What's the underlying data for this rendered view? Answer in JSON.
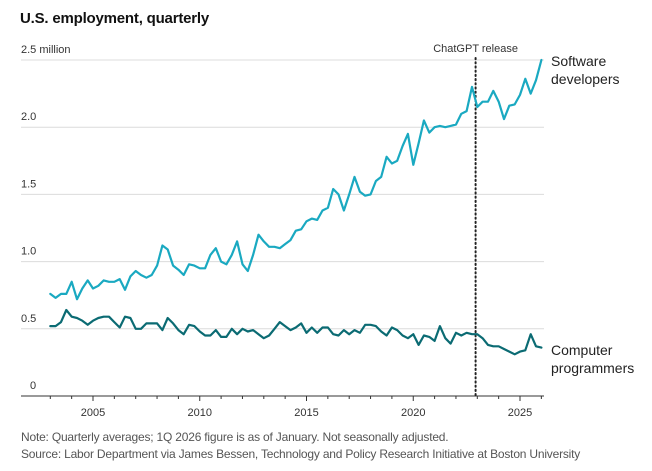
{
  "chart_data": {
    "type": "line",
    "title": "U.S. employment, quarterly",
    "ylabel_unit": "million",
    "ylim": [
      0,
      2.5
    ],
    "xlim": [
      2002.7,
      2026.1
    ],
    "yticks": [
      {
        "value": 0,
        "label": "0"
      },
      {
        "value": 0.5,
        "label": "0.5"
      },
      {
        "value": 1.0,
        "label": "1.0"
      },
      {
        "value": 1.5,
        "label": "1.5"
      },
      {
        "value": 2.0,
        "label": "2.0"
      },
      {
        "value": 2.5,
        "label": "2.5 million"
      }
    ],
    "xticks": [
      {
        "value": 2005,
        "label": "2005"
      },
      {
        "value": 2010,
        "label": "2010"
      },
      {
        "value": 2015,
        "label": "2015"
      },
      {
        "value": 2020,
        "label": "2020"
      },
      {
        "value": 2025,
        "label": "2025"
      }
    ],
    "minor_xticks_every_year": true,
    "grid": true,
    "x_start": 2003.0,
    "x_step": 0.25,
    "series": [
      {
        "name": "Software developers",
        "label_lines": [
          "Software",
          "developers"
        ],
        "color": "#1aa9c1",
        "values": [
          0.76,
          0.73,
          0.76,
          0.76,
          0.85,
          0.72,
          0.8,
          0.86,
          0.8,
          0.82,
          0.86,
          0.85,
          0.85,
          0.87,
          0.79,
          0.89,
          0.93,
          0.9,
          0.88,
          0.9,
          0.97,
          1.12,
          1.09,
          0.97,
          0.94,
          0.9,
          0.98,
          0.97,
          0.95,
          0.95,
          1.05,
          1.1,
          1.0,
          0.98,
          1.05,
          1.15,
          0.98,
          0.93,
          1.05,
          1.2,
          1.15,
          1.11,
          1.11,
          1.1,
          1.13,
          1.16,
          1.23,
          1.24,
          1.3,
          1.32,
          1.31,
          1.38,
          1.4,
          1.54,
          1.5,
          1.38,
          1.5,
          1.63,
          1.52,
          1.49,
          1.5,
          1.6,
          1.63,
          1.78,
          1.73,
          1.75,
          1.86,
          1.95,
          1.72,
          1.88,
          2.05,
          1.96,
          2.0,
          2.01,
          2.0,
          2.01,
          2.02,
          2.1,
          2.12,
          2.3,
          2.15,
          2.19,
          2.19,
          2.27,
          2.19,
          2.06,
          2.16,
          2.17,
          2.24,
          2.36,
          2.25,
          2.35,
          2.5
        ]
      },
      {
        "name": "Computer programmers",
        "label_lines": [
          "Computer",
          "programmers"
        ],
        "color": "#0b6b73",
        "values": [
          0.52,
          0.52,
          0.55,
          0.64,
          0.59,
          0.58,
          0.56,
          0.53,
          0.56,
          0.58,
          0.59,
          0.59,
          0.55,
          0.51,
          0.59,
          0.58,
          0.5,
          0.5,
          0.54,
          0.54,
          0.54,
          0.49,
          0.58,
          0.54,
          0.49,
          0.46,
          0.53,
          0.52,
          0.48,
          0.45,
          0.45,
          0.49,
          0.44,
          0.44,
          0.5,
          0.46,
          0.5,
          0.48,
          0.49,
          0.46,
          0.43,
          0.45,
          0.5,
          0.55,
          0.52,
          0.49,
          0.51,
          0.54,
          0.47,
          0.51,
          0.47,
          0.51,
          0.51,
          0.46,
          0.45,
          0.49,
          0.46,
          0.49,
          0.47,
          0.53,
          0.53,
          0.52,
          0.48,
          0.45,
          0.51,
          0.49,
          0.45,
          0.43,
          0.46,
          0.38,
          0.45,
          0.44,
          0.41,
          0.52,
          0.43,
          0.39,
          0.47,
          0.45,
          0.47,
          0.46,
          0.46,
          0.43,
          0.38,
          0.37,
          0.37,
          0.35,
          0.33,
          0.31,
          0.33,
          0.34,
          0.46,
          0.37,
          0.36
        ]
      }
    ],
    "annotations": [
      {
        "type": "vline",
        "x": 2022.92,
        "label": "ChatGPT release",
        "style": "dotted"
      }
    ]
  },
  "notes": {
    "note": "Note: Quarterly averages; 1Q 2026 figure is as of January. Not seasonally adjusted.",
    "source": "Source: Labor Department via James Bessen, Technology and Policy Research Initiative at Boston University"
  }
}
